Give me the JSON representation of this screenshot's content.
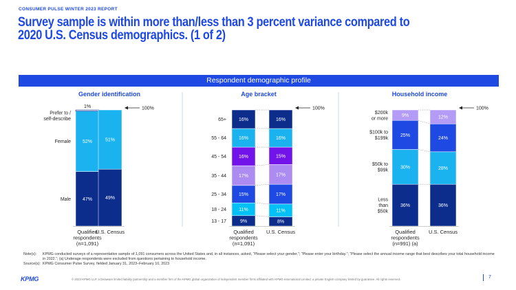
{
  "header": {
    "report_label": "CONSUMER PULSE WINTER 2023 REPORT",
    "title": "Survey sample is within more than/less than 3 percent variance compared to 2020 U.S. Census demographics. (1 of 2)",
    "banner": "Respondent demographic profile"
  },
  "colors": {
    "accent": "#1e49e2",
    "navy": "#0c2d8c",
    "cyan": "#1bb2f0",
    "purple": "#7213ea",
    "lavender": "#ad8cf2",
    "sky": "#00c0f5",
    "light_purple": "#b49bf5",
    "blue": "#1e49e2"
  },
  "chart_data": [
    {
      "type": "bar",
      "stacked": true,
      "title": "Gender identification",
      "categories": [
        "Qualified respondents (n=1,091)",
        "U.S. Census"
      ],
      "series": [
        {
          "name": "Male",
          "values": [
            47,
            49
          ],
          "color": "#0c2d8c"
        },
        {
          "name": "Female",
          "values": [
            52,
            51
          ],
          "color": "#1bb2f0"
        },
        {
          "name": "Prefer to self-describe",
          "values": [
            1,
            0
          ],
          "color": "#ffffff"
        }
      ],
      "top_annotation": "1%",
      "total_label": "100%",
      "label_lines": {
        "Male": [
          "Male"
        ],
        "Female": [
          "Female"
        ],
        "Prefer to self-describe": [
          "Prefer to /",
          "self-describe"
        ]
      },
      "category_lines": [
        [
          "Qualified",
          "respondents",
          "(n=1,091)"
        ],
        [
          "U.S. Census"
        ]
      ],
      "ylim": [
        0,
        100
      ]
    },
    {
      "type": "bar",
      "stacked": true,
      "title": "Age bracket",
      "categories": [
        "Qualified respondents (n=1,091)",
        "U.S. Census"
      ],
      "series": [
        {
          "name": "13 - 17",
          "values": [
            9,
            8
          ],
          "color": "#0c2d8c"
        },
        {
          "name": "18 - 24",
          "values": [
            11,
            11
          ],
          "color": "#00c0f5"
        },
        {
          "name": "25 - 34",
          "values": [
            15,
            17
          ],
          "color": "#1e49e2"
        },
        {
          "name": "35 - 44",
          "values": [
            17,
            17
          ],
          "color": "#ad8cf2"
        },
        {
          "name": "45 - 54",
          "values": [
            16,
            15
          ],
          "color": "#7213ea"
        },
        {
          "name": "55 - 64",
          "values": [
            16,
            16
          ],
          "color": "#1bb2f0"
        },
        {
          "name": "65+",
          "values": [
            16,
            16
          ],
          "color": "#0c2d8c"
        }
      ],
      "total_label": "100%",
      "category_lines": [
        [
          "Qualified",
          "respondents",
          "(n=1,091)"
        ],
        [
          "U.S. Census"
        ]
      ],
      "ylim": [
        0,
        100
      ]
    },
    {
      "type": "bar",
      "stacked": true,
      "title": "Household income",
      "categories": [
        "Qualified respondents (n=991) (a)",
        "U.S. Census"
      ],
      "series": [
        {
          "name": "Less than $50k",
          "values": [
            36,
            36
          ],
          "color": "#0c2d8c"
        },
        {
          "name": "$50k to $99k",
          "values": [
            30,
            28
          ],
          "color": "#1bb2f0"
        },
        {
          "name": "$100k to $199k",
          "values": [
            25,
            24
          ],
          "color": "#1e49e2"
        },
        {
          "name": "$200k or more",
          "values": [
            9,
            12
          ],
          "color": "#b49bf5"
        }
      ],
      "total_label": "100%",
      "label_lines": {
        "Less than $50k": [
          "Less",
          "than",
          "$50k"
        ],
        "$50k to $99k": [
          "$50k to",
          "$99k"
        ],
        "$100k to $199k": [
          "$100k to",
          "$199k"
        ],
        "$200k or more": [
          "$200k",
          "or more"
        ]
      },
      "category_lines": [
        [
          "Qualified",
          "respondents",
          "(n=991) (a)"
        ],
        [
          "U.S. Census"
        ]
      ],
      "ylim": [
        0,
        100
      ]
    }
  ],
  "notes": {
    "notes_label": "Note(s):",
    "notes_text": "KPMG conducted surveys of a representative sample of 1,091 consumers across the United States and, in all instances, asked, “Please select your gender.”; “Please enter your birthday.”; “Please select the annual income range that best describes your total household income in 2022.”; (a) Underage respondents were excluded from questions pertaining to household income.",
    "source_label": "Source(s):",
    "source_text": "KPMG Consumer Pulse Survey, fielded January 31, 2023–February 10, 2023"
  },
  "footer": {
    "logo": "KPMG",
    "copyright": "© 2023 KPMG LLP, a Delaware limited liability partnership and a member firm of the KPMG global organization of independent member firms affiliated with KPMG International Limited, a private English company limited by guarantee. All rights reserved.",
    "page_number": "7"
  }
}
